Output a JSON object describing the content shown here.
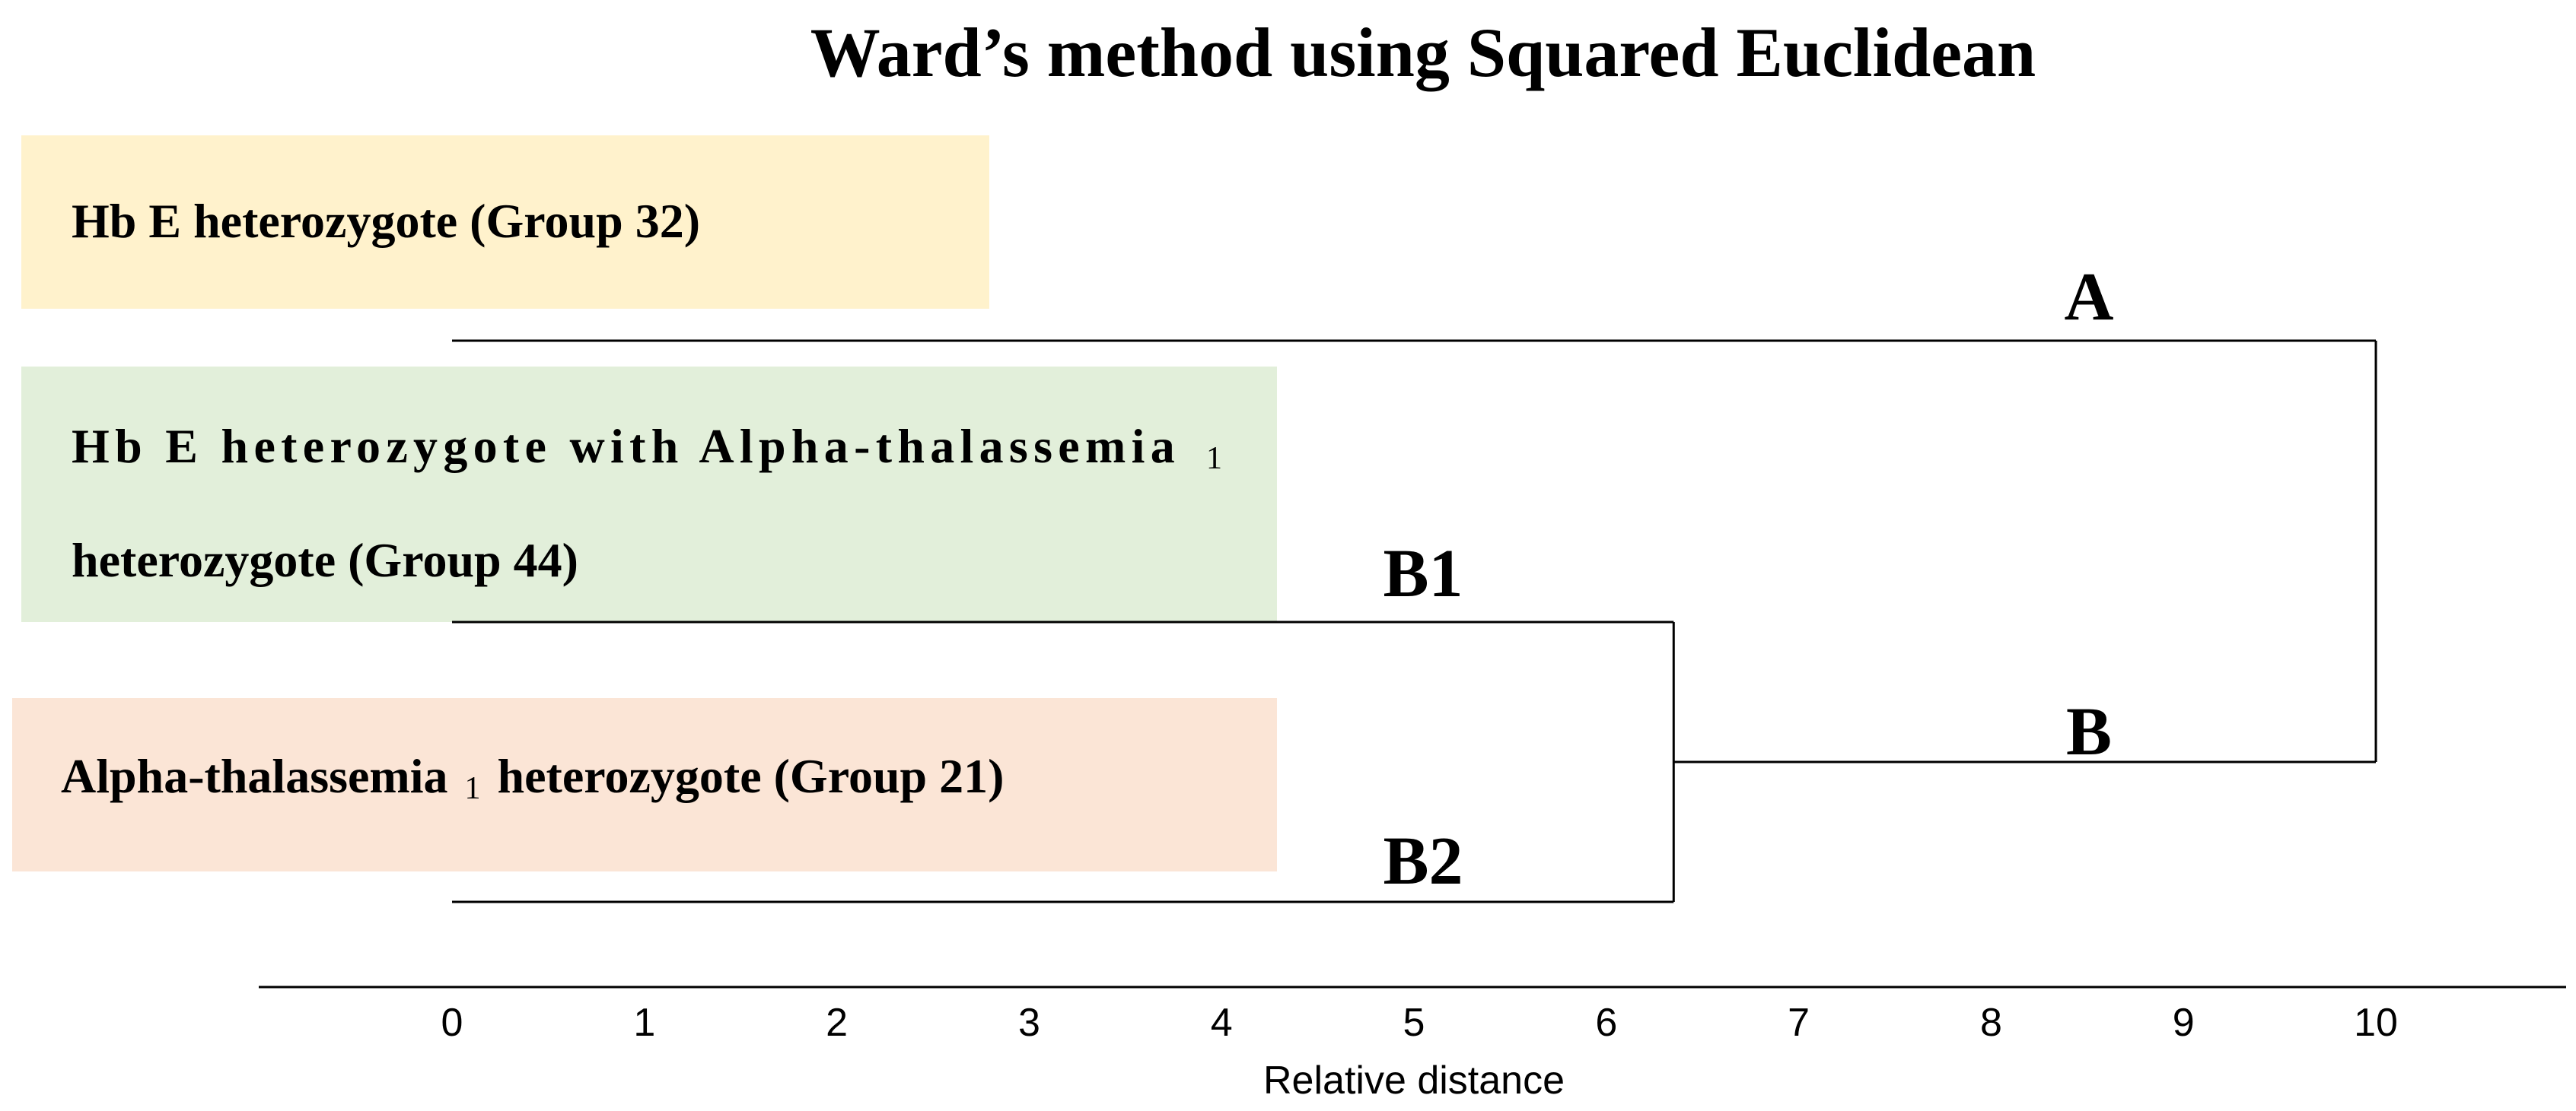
{
  "chart_data": {
    "type": "dendrogram",
    "title": "Ward’s method using Squared Euclidean",
    "xlabel": "Relative distance",
    "xlim": [
      0,
      10
    ],
    "xticks": [
      "0",
      "1",
      "2",
      "3",
      "4",
      "5",
      "6",
      "7",
      "8",
      "9",
      "10"
    ],
    "leaves": [
      {
        "id": "g32",
        "label": "Hb E heterozygote (Group 32)",
        "color": "#FFF2CC"
      },
      {
        "id": "g44",
        "label_line1": "Hb E heterozygote with Alpha-thalassemia",
        "label_line1_sub": "1",
        "label_line2": "heterozygote (Group 44)",
        "color": "#E2EFDA"
      },
      {
        "id": "g21",
        "label_pre": "Alpha-thalassemia",
        "label_sub": "1",
        "label_post": "heterozygote (Group 21)",
        "color": "#FBE5D6"
      }
    ],
    "clusters": [
      {
        "name": "A",
        "members": [
          "g32"
        ]
      },
      {
        "name": "B1",
        "members": [
          "g44"
        ]
      },
      {
        "name": "B2",
        "members": [
          "g21"
        ]
      },
      {
        "name": "B",
        "members": [
          "g44",
          "g21"
        ]
      }
    ],
    "merges": [
      {
        "left": "B1",
        "right": "B2",
        "distance": 6.35
      },
      {
        "left": "A",
        "right": "B",
        "distance": 10.0
      }
    ],
    "line_color": "#000000"
  }
}
